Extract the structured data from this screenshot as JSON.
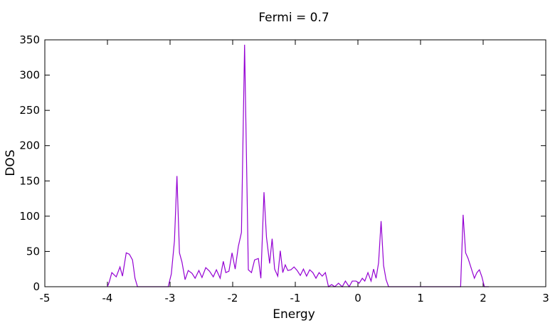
{
  "chart_data": {
    "type": "line",
    "title": "Fermi = 0.7",
    "xlabel": "Energy",
    "ylabel": "DOS",
    "xlim": [
      -5,
      3
    ],
    "ylim": [
      0,
      350
    ],
    "grid": false,
    "legend": "none",
    "x_ticks": [
      "-5",
      "-4",
      "-3",
      "-2",
      "-1",
      "0",
      "1",
      "2",
      "3"
    ],
    "y_ticks": [
      "0",
      "50",
      "100",
      "150",
      "200",
      "250",
      "300",
      "350"
    ],
    "colors": {
      "series": "#9400d3",
      "axes": "#000000"
    },
    "series": [
      {
        "x": [
          -4.0,
          -3.97,
          -3.93,
          -3.86,
          -3.8,
          -3.76,
          -3.7,
          -3.65,
          -3.6,
          -3.56,
          -3.52,
          -3.47,
          -3.43,
          -3.03,
          -2.98,
          -2.93,
          -2.89,
          -2.85,
          -2.81,
          -2.76,
          -2.71,
          -2.65,
          -2.6,
          -2.54,
          -2.49,
          -2.43,
          -2.37,
          -2.31,
          -2.26,
          -2.2,
          -2.15,
          -2.11,
          -2.06,
          -2.01,
          -1.96,
          -1.91,
          -1.86,
          -1.81,
          -1.78,
          -1.75,
          -1.7,
          -1.65,
          -1.59,
          -1.55,
          -1.5,
          -1.46,
          -1.41,
          -1.37,
          -1.33,
          -1.28,
          -1.24,
          -1.2,
          -1.16,
          -1.12,
          -1.07,
          -1.02,
          -0.97,
          -0.92,
          -0.87,
          -0.82,
          -0.77,
          -0.72,
          -0.67,
          -0.62,
          -0.57,
          -0.52,
          -0.47,
          -0.42,
          -0.37,
          -0.31,
          -0.25,
          -0.2,
          -0.14,
          -0.09,
          -0.03,
          0.02,
          0.07,
          0.11,
          0.16,
          0.21,
          0.25,
          0.29,
          0.33,
          0.37,
          0.41,
          0.45,
          0.49,
          0.52,
          0.55,
          0.58,
          0.61,
          0.64,
          1.64,
          1.68,
          1.72,
          1.76,
          1.81,
          1.86,
          1.9,
          1.94,
          1.98,
          2.02,
          2.06,
          2.09
        ],
        "y": [
          0,
          7,
          20,
          14,
          28,
          15,
          48,
          46,
          38,
          12,
          0,
          0,
          0,
          0,
          18,
          65,
          157,
          48,
          35,
          10,
          23,
          19,
          12,
          23,
          13,
          27,
          22,
          14,
          24,
          12,
          36,
          20,
          22,
          48,
          25,
          57,
          77,
          343,
          185,
          24,
          20,
          38,
          40,
          12,
          134,
          70,
          33,
          68,
          25,
          15,
          51,
          20,
          31,
          23,
          24,
          28,
          23,
          16,
          25,
          15,
          24,
          20,
          12,
          20,
          15,
          20,
          0,
          3,
          0,
          5,
          0,
          8,
          0,
          8,
          8,
          5,
          12,
          8,
          20,
          8,
          25,
          12,
          34,
          93,
          30,
          10,
          0,
          0,
          0,
          0,
          0,
          0,
          0,
          102,
          48,
          40,
          26,
          12,
          20,
          24,
          14,
          0,
          0,
          0
        ]
      }
    ]
  }
}
